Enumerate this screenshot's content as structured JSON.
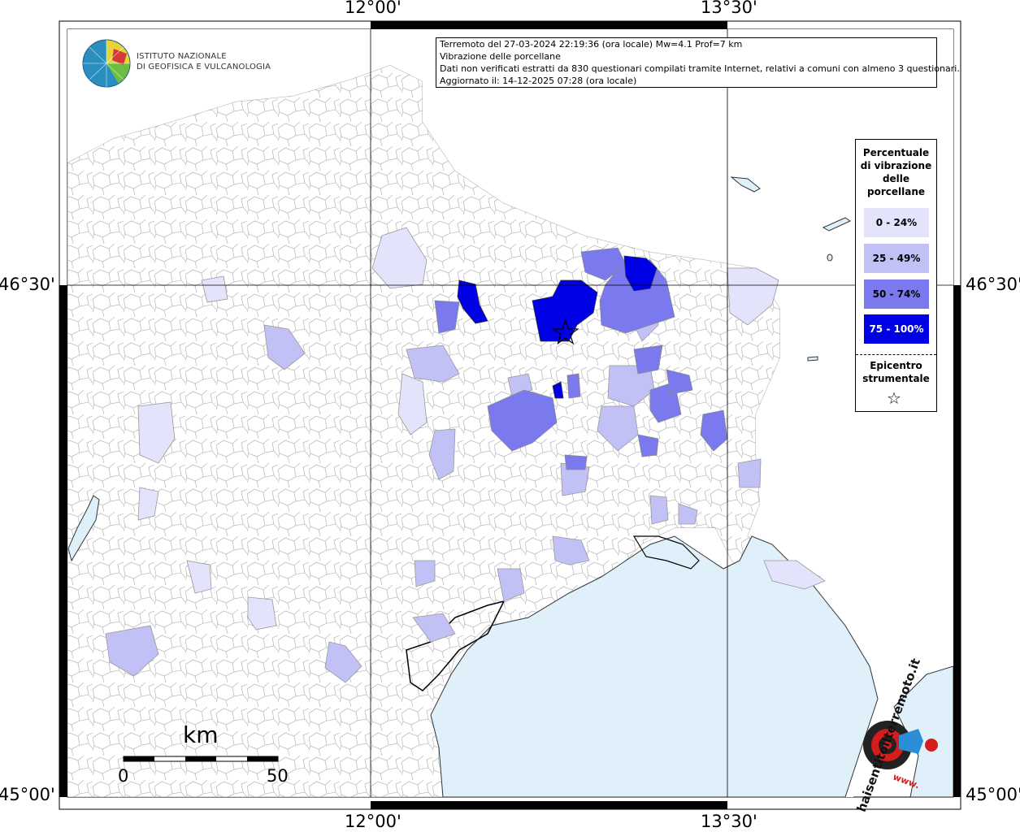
{
  "header": {
    "line1": "Terremoto del 27-03-2024 22:19:36 (ora locale) Mw=4.1 Prof=7 km",
    "line2": "Vibrazione delle porcellane",
    "line3": "Dati non verificati estratti da 830 questionari compilati tramite Internet, relativi a comuni con almeno 3 questionari.",
    "line4": "Aggiornato il: 14-12-2025 07:28 (ora locale)"
  },
  "logo": {
    "line1": "ISTITUTO NAZIONALE",
    "line2": "DI GEOFISICA E VULCANOLOGIA"
  },
  "axes": {
    "top_left": "12°00'",
    "top_right": "13°30'",
    "bottom_left": "12°00'",
    "bottom_right": "13°30'",
    "left_top": "46°30'",
    "left_bottom": "45°00'",
    "right_top": "46°30'",
    "right_bottom": "45°00'"
  },
  "legend": {
    "title_lines": [
      "Percentuale",
      "di vibrazione",
      "delle",
      "porcellane"
    ],
    "items": [
      {
        "label": "0 - 24%",
        "color": "#e3e3fb"
      },
      {
        "label": "25 - 49%",
        "color": "#c1c1f6"
      },
      {
        "label": "50 - 74%",
        "color": "#7a7aee"
      },
      {
        "label": "75 - 100%",
        "color": "#0000e6"
      }
    ],
    "epicenter_lines": [
      "Epicentro",
      "strumentale"
    ],
    "epicenter_symbol": "☆"
  },
  "scale": {
    "unit": "km",
    "start": "0",
    "end": "50"
  },
  "brand": {
    "text": "haisentitoilterremoto.it",
    "prefix": "www."
  },
  "colors": {
    "sea": "#dff0fb",
    "border": "#888888",
    "frame": "#000000"
  }
}
